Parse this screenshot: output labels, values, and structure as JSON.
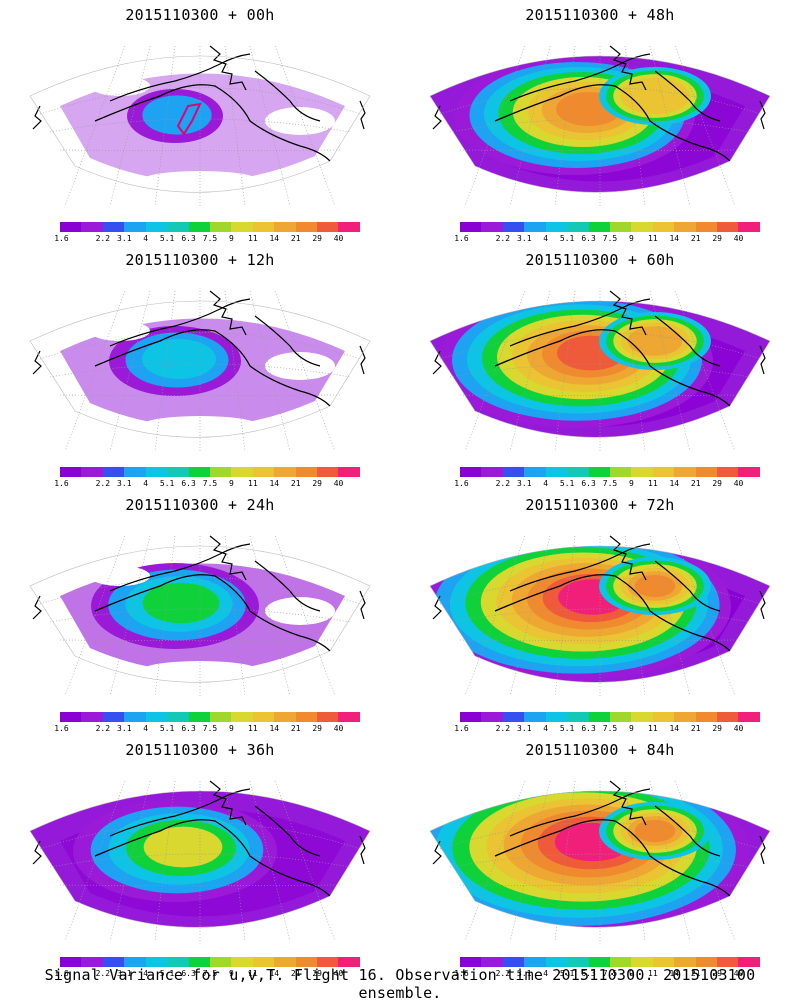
{
  "panels": [
    {
      "title": "2015110300 + 00h",
      "level": 0
    },
    {
      "title": "2015110300 + 48h",
      "level": 4
    },
    {
      "title": "2015110300 + 12h",
      "level": 1
    },
    {
      "title": "2015110300 + 60h",
      "level": 5
    },
    {
      "title": "2015110300 + 24h",
      "level": 2
    },
    {
      "title": "2015110300 + 72h",
      "level": 6
    },
    {
      "title": "2015110300 + 36h",
      "level": 3
    },
    {
      "title": "2015110300 + 84h",
      "level": 7
    }
  ],
  "colorbar": {
    "colors": [
      "#8a00d4",
      "#9a1ad8",
      "#3550ef",
      "#1ea2f2",
      "#0ec4e4",
      "#13c8b4",
      "#0fd23a",
      "#9fd82a",
      "#d8d830",
      "#eac432",
      "#eda732",
      "#f08a2e",
      "#ee5a3a",
      "#f0207a"
    ],
    "labels": [
      "1.6",
      "2.2",
      "3.1",
      "4",
      "5.1",
      "6.3",
      "7.5",
      "9",
      "11",
      "14",
      "21",
      "29",
      "40"
    ]
  },
  "footer": "Signal Variance for u,v,T. Flight 16. Observation time 2015110300. 2015103100 ensemble."
}
